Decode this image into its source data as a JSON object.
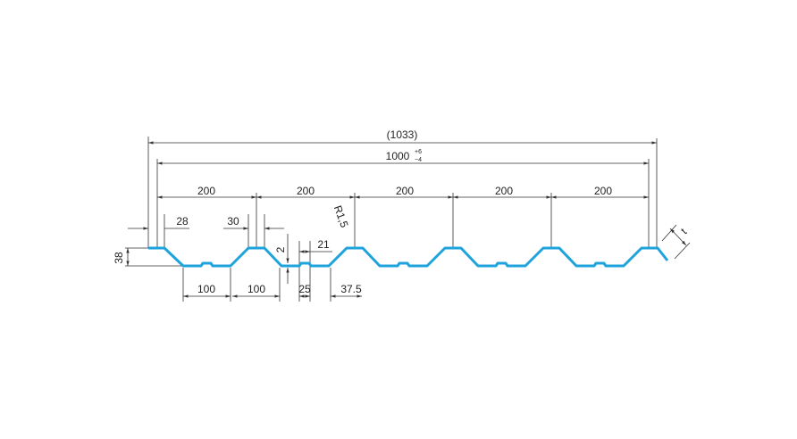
{
  "dimensions": {
    "overall": "(1033)",
    "cover": {
      "value": "1000",
      "upper": "+6",
      "lower": "−4"
    },
    "pitch": [
      "200",
      "200",
      "200",
      "200",
      "200"
    ],
    "crest_left": "28",
    "crest_right": "30",
    "radius": "R1,5",
    "rib_height": "2",
    "rib_width": "21",
    "height": "38",
    "bottom": [
      "100",
      "100"
    ],
    "gap": "25",
    "edge": "37.5",
    "thickness": "t"
  }
}
